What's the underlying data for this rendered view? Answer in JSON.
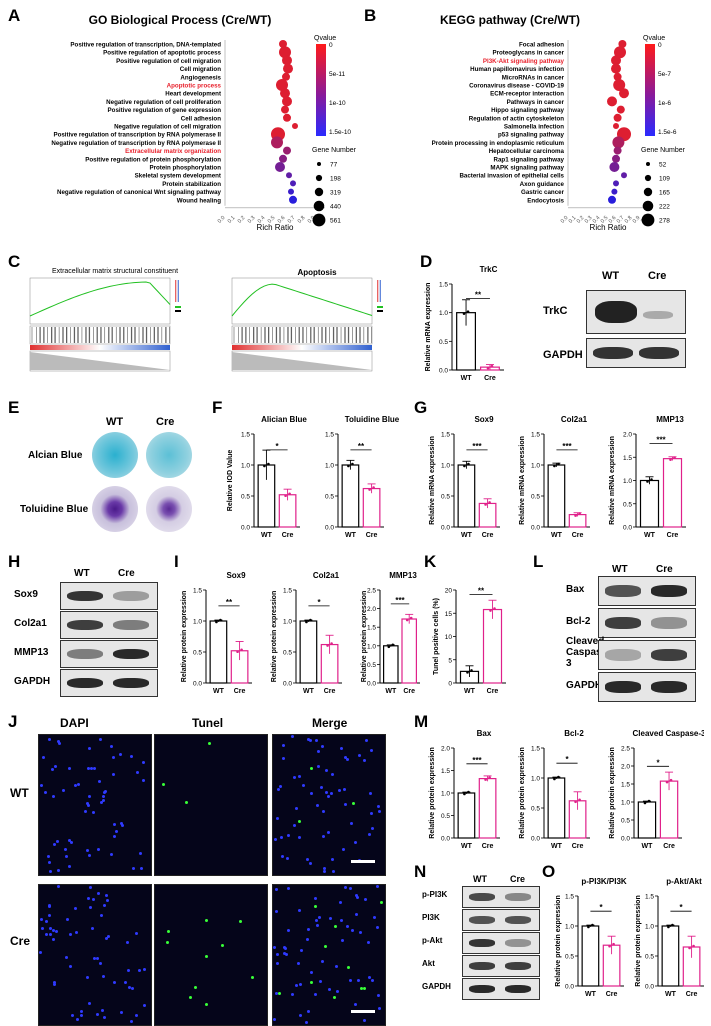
{
  "panels": {
    "A": "A",
    "B": "B",
    "C": "C",
    "D": "D",
    "E": "E",
    "F": "F",
    "G": "G",
    "H": "H",
    "I": "I",
    "J": "J",
    "K": "K",
    "L": "L",
    "M": "M",
    "N": "N",
    "O": "O"
  },
  "colors": {
    "wt_bar": "#000000",
    "cre_bar": "#e0218a",
    "highlight": "#e8222d"
  },
  "go": {
    "title": "GO Biological Process (Cre/WT)",
    "xlabel": "Rich Ratio",
    "terms": [
      "Positive regulation of transcription, DNA-templated",
      "Positive regulation of apoptotic process",
      "Positive regulation of cell migration",
      "Cell migration",
      "Angiogenesis",
      "Apoptotic process",
      "Heart development",
      "Negative regulation of cell proliferation",
      "Positive regulation of gene expression",
      "Cell adhesion",
      "Negative regulation of cell migration",
      "Positive regulation of transcription by RNA polymerase II",
      "Negative regulation of transcription by RNA polymerase II",
      "Extracellular matrix organization",
      "Positive regulation of protein phosphorylation",
      "Protein phosphorylation",
      "Skeletal system development",
      "Protein stabilization",
      "Negative regulation of canonical Wnt signaling pathway",
      "Wound healing"
    ],
    "highlight": [
      5,
      13
    ],
    "legend_q_title": "Qvalue",
    "legend_q_ticks": [
      "0",
      "5e-11",
      "1e-10",
      "1.5e-10"
    ],
    "legend_g_title": "Gene Number",
    "legend_g_values": [
      "77",
      "198",
      "319",
      "440",
      "561"
    ]
  },
  "kegg": {
    "title": "KEGG pathway (Cre/WT)",
    "xlabel": "Rich Ratio",
    "terms": [
      "Focal adhesion",
      "Proteoglycans in cancer",
      "PI3K-Akt signaling pathway",
      "Human papillomavirus infection",
      "MicroRNAs in cancer",
      "Coronavirus disease - COVID-19",
      "ECM-receptor interaction",
      "Pathways in cancer",
      "Hippo signaling pathway",
      "Regulation of actin cytoskeleton",
      "Salmonella infection",
      "p53 signaling pathway",
      "Protein processing in endoplasmic reticulum",
      "Hepatocellular carcinoma",
      "Rap1 signaling pathway",
      "MAPK signaling pathway",
      "Bacterial invasion of epithelial cells",
      "Axon guidance",
      "Gastric cancer",
      "Endocytosis"
    ],
    "highlight": [
      2
    ],
    "legend_q_title": "Qvalue",
    "legend_q_ticks": [
      "0",
      "5e-7",
      "1e-6",
      "1.5e-6"
    ],
    "legend_g_title": "Gene Number",
    "legend_g_values": [
      "52",
      "109",
      "165",
      "222",
      "278"
    ]
  },
  "gsea": {
    "left_title": "Extracellular matrix structural constituent",
    "right_title": "Apoptosis"
  },
  "trkc": {
    "title": "TrkC",
    "ylabel": "Relative mRNA expression",
    "sig": "**",
    "blot_wt": "WT",
    "blot_cre": "Cre",
    "row1": "TrkC",
    "row2": "GAPDH"
  },
  "stain": {
    "col_wt": "WT",
    "col_cre": "Cre",
    "row1": "Alcian Blue",
    "row2": "Toluidine Blue"
  },
  "iod": {
    "ylabel": "Relative IOD Value",
    "t1": "Alician Blue",
    "t2": "Toluidine Blue",
    "s1": "*",
    "s2": "**"
  },
  "mrna": {
    "ylabel": "Relative mRNA expression",
    "t1": "Sox9",
    "t2": "Col2a1",
    "t3": "MMP13",
    "s": "***"
  },
  "blotH": {
    "wt": "WT",
    "cre": "Cre",
    "rows": [
      "Sox9",
      "Col2a1",
      "MMP13",
      "GAPDH"
    ]
  },
  "protI": {
    "ylabel": "Relative protein expression",
    "t1": "Sox9",
    "t2": "Col2a1",
    "t3": "MMP13",
    "s1": "**",
    "s2": "*",
    "s3": "***"
  },
  "tunel": {
    "ylabel": "Tunel positive cells (%)",
    "sig": "**"
  },
  "blotL": {
    "wt": "WT",
    "cre": "Cre",
    "rows": [
      "Bax",
      "Bcl-2",
      "Cleaved Caspase-3",
      "GAPDH"
    ]
  },
  "micro": {
    "cols": [
      "DAPI",
      "Tunel",
      "Merge"
    ],
    "rows": [
      "WT",
      "Cre"
    ]
  },
  "protM": {
    "ylabel": "Relative protein expression",
    "t1": "Bax",
    "t2": "Bcl-2",
    "t3": "Cleaved Caspase-3",
    "s1": "***",
    "s2": "*",
    "s3": "*"
  },
  "blotN": {
    "wt": "WT",
    "cre": "Cre",
    "rows": [
      "p-PI3K",
      "PI3K",
      "p-Akt",
      "Akt",
      "GAPDH"
    ]
  },
  "protO": {
    "ylabel": "Relative protein expression",
    "t1": "p-PI3K/PI3K",
    "t2": "p-Akt/Akt",
    "s": "*"
  },
  "chart_data": [
    {
      "type": "scatter",
      "title": "GO Biological Process (Cre/WT)",
      "xlabel": "Rich Ratio",
      "xlim": [
        0,
        1
      ],
      "x": [
        0.58,
        0.6,
        0.62,
        0.63,
        0.61,
        0.57,
        0.6,
        0.62,
        0.6,
        0.62,
        0.7,
        0.53,
        0.52,
        0.62,
        0.58,
        0.55,
        0.64,
        0.68,
        0.66,
        0.68
      ],
      "y": [
        "Positive regulation of transcription, DNA-templated",
        "Positive regulation of apoptotic process",
        "Positive regulation of cell migration",
        "Cell migration",
        "Angiogenesis",
        "Apoptotic process",
        "Heart development",
        "Negative regulation of cell proliferation",
        "Positive regulation of gene expression",
        "Cell adhesion",
        "Negative regulation of cell migration",
        "Positive regulation of transcription by RNA polymerase II",
        "Negative regulation of transcription by RNA polymerase II",
        "Extracellular matrix organization",
        "Positive regulation of protein phosphorylation",
        "Protein phosphorylation",
        "Skeletal system development",
        "Protein stabilization",
        "Negative regulation of canonical Wnt signaling pathway",
        "Wound healing"
      ]
    },
    {
      "type": "scatter",
      "title": "KEGG pathway (Cre/WT)",
      "xlabel": "Rich Ratio",
      "xlim": [
        0,
        1
      ],
      "x": [
        0.68,
        0.65,
        0.6,
        0.6,
        0.62,
        0.64,
        0.7,
        0.55,
        0.66,
        0.62,
        0.6,
        0.7,
        0.63,
        0.62,
        0.6,
        0.58,
        0.7,
        0.6,
        0.58,
        0.55
      ],
      "y": [
        "Focal adhesion",
        "Proteoglycans in cancer",
        "PI3K-Akt signaling pathway",
        "Human papillomavirus infection",
        "MicroRNAs in cancer",
        "Coronavirus disease - COVID-19",
        "ECM-receptor interaction",
        "Pathways in cancer",
        "Hippo signaling pathway",
        "Regulation of actin cytoskeleton",
        "Salmonella infection",
        "p53 signaling pathway",
        "Protein processing in endoplasmic reticulum",
        "Hepatocellular carcinoma",
        "Rap1 signaling pathway",
        "MAPK signaling pathway",
        "Bacterial invasion of epithelial cells",
        "Axon guidance",
        "Gastric cancer",
        "Endocytosis"
      ]
    },
    {
      "type": "bar",
      "title": "TrkC",
      "ylabel": "Relative mRNA expression",
      "categories": [
        "WT",
        "Cre"
      ],
      "values": [
        1.0,
        0.05
      ],
      "ylim": [
        0,
        1.5
      ],
      "yticks": [
        "0.0",
        "0.5",
        "1.0",
        "1.5"
      ]
    },
    {
      "type": "bar",
      "title": "Alician Blue",
      "ylabel": "Relative IOD Value",
      "categories": [
        "WT",
        "Cre"
      ],
      "values": [
        1.0,
        0.52
      ],
      "ylim": [
        0,
        1.5
      ],
      "yticks": [
        "0.0",
        "0.5",
        "1.0",
        "1.5"
      ]
    },
    {
      "type": "bar",
      "title": "Toluidine Blue",
      "categories": [
        "WT",
        "Cre"
      ],
      "values": [
        1.0,
        0.62
      ],
      "ylim": [
        0,
        1.5
      ],
      "yticks": [
        "0.0",
        "0.5",
        "1.0",
        "1.5"
      ]
    },
    {
      "type": "bar",
      "title": "Sox9",
      "ylabel": "Relative mRNA expression",
      "categories": [
        "WT",
        "Cre"
      ],
      "values": [
        1.0,
        0.38
      ],
      "ylim": [
        0,
        1.5
      ],
      "yticks": [
        "0.0",
        "0.5",
        "1.0",
        "1.5"
      ]
    },
    {
      "type": "bar",
      "title": "Col2a1",
      "categories": [
        "WT",
        "Cre"
      ],
      "values": [
        1.0,
        0.2
      ],
      "ylim": [
        0,
        1.5
      ],
      "yticks": [
        "0.0",
        "0.5",
        "1.0",
        "1.5"
      ]
    },
    {
      "type": "bar",
      "title": "MMP13",
      "categories": [
        "WT",
        "Cre"
      ],
      "values": [
        1.0,
        1.47
      ],
      "ylim": [
        0,
        2.0
      ],
      "yticks": [
        "0.0",
        "0.5",
        "1.0",
        "1.5",
        "2.0"
      ]
    },
    {
      "type": "bar",
      "title": "Sox9",
      "ylabel": "Relative protein expression",
      "categories": [
        "WT",
        "Cre"
      ],
      "values": [
        1.0,
        0.52
      ],
      "ylim": [
        0,
        1.5
      ],
      "yticks": [
        "0.0",
        "0.5",
        "1.0",
        "1.5"
      ]
    },
    {
      "type": "bar",
      "title": "Col2a1",
      "categories": [
        "WT",
        "Cre"
      ],
      "values": [
        1.0,
        0.62
      ],
      "ylim": [
        0,
        1.5
      ],
      "yticks": [
        "0.0",
        "0.5",
        "1.0",
        "1.5"
      ]
    },
    {
      "type": "bar",
      "title": "MMP13",
      "categories": [
        "WT",
        "Cre"
      ],
      "values": [
        1.0,
        1.72
      ],
      "ylim": [
        0,
        2.5
      ],
      "yticks": [
        "0.0",
        "0.5",
        "1.0",
        "1.5",
        "2.0",
        "2.5"
      ]
    },
    {
      "type": "bar",
      "ylabel": "Tunel positive cells (%)",
      "categories": [
        "WT",
        "Cre"
      ],
      "values": [
        2.5,
        15.8
      ],
      "ylim": [
        0,
        20
      ],
      "yticks": [
        "0",
        "5",
        "10",
        "15",
        "20"
      ]
    },
    {
      "type": "bar",
      "title": "Bax",
      "ylabel": "Relative protein expression",
      "categories": [
        "WT",
        "Cre"
      ],
      "values": [
        1.0,
        1.32
      ],
      "ylim": [
        0,
        2.0
      ],
      "yticks": [
        "0.0",
        "0.5",
        "1.0",
        "1.5",
        "2.0"
      ]
    },
    {
      "type": "bar",
      "title": "Bcl-2",
      "categories": [
        "WT",
        "Cre"
      ],
      "values": [
        1.0,
        0.62
      ],
      "ylim": [
        0,
        1.5
      ],
      "yticks": [
        "0.0",
        "0.5",
        "1.0",
        "1.5"
      ]
    },
    {
      "type": "bar",
      "title": "Cleaved Caspase-3",
      "categories": [
        "WT",
        "Cre"
      ],
      "values": [
        1.0,
        1.58
      ],
      "ylim": [
        0,
        2.5
      ],
      "yticks": [
        "0.0",
        "0.5",
        "1.0",
        "1.5",
        "2.0",
        "2.5"
      ]
    },
    {
      "type": "bar",
      "title": "p-PI3K/PI3K",
      "ylabel": "Relative protein expression",
      "categories": [
        "WT",
        "Cre"
      ],
      "values": [
        1.0,
        0.68
      ],
      "ylim": [
        0,
        1.5
      ],
      "yticks": [
        "0.0",
        "0.5",
        "1.0",
        "1.5"
      ]
    },
    {
      "type": "bar",
      "title": "p-Akt/Akt",
      "categories": [
        "WT",
        "Cre"
      ],
      "values": [
        1.0,
        0.65
      ],
      "ylim": [
        0,
        1.5
      ],
      "yticks": [
        "0.0",
        "0.5",
        "1.0",
        "1.5"
      ]
    }
  ]
}
